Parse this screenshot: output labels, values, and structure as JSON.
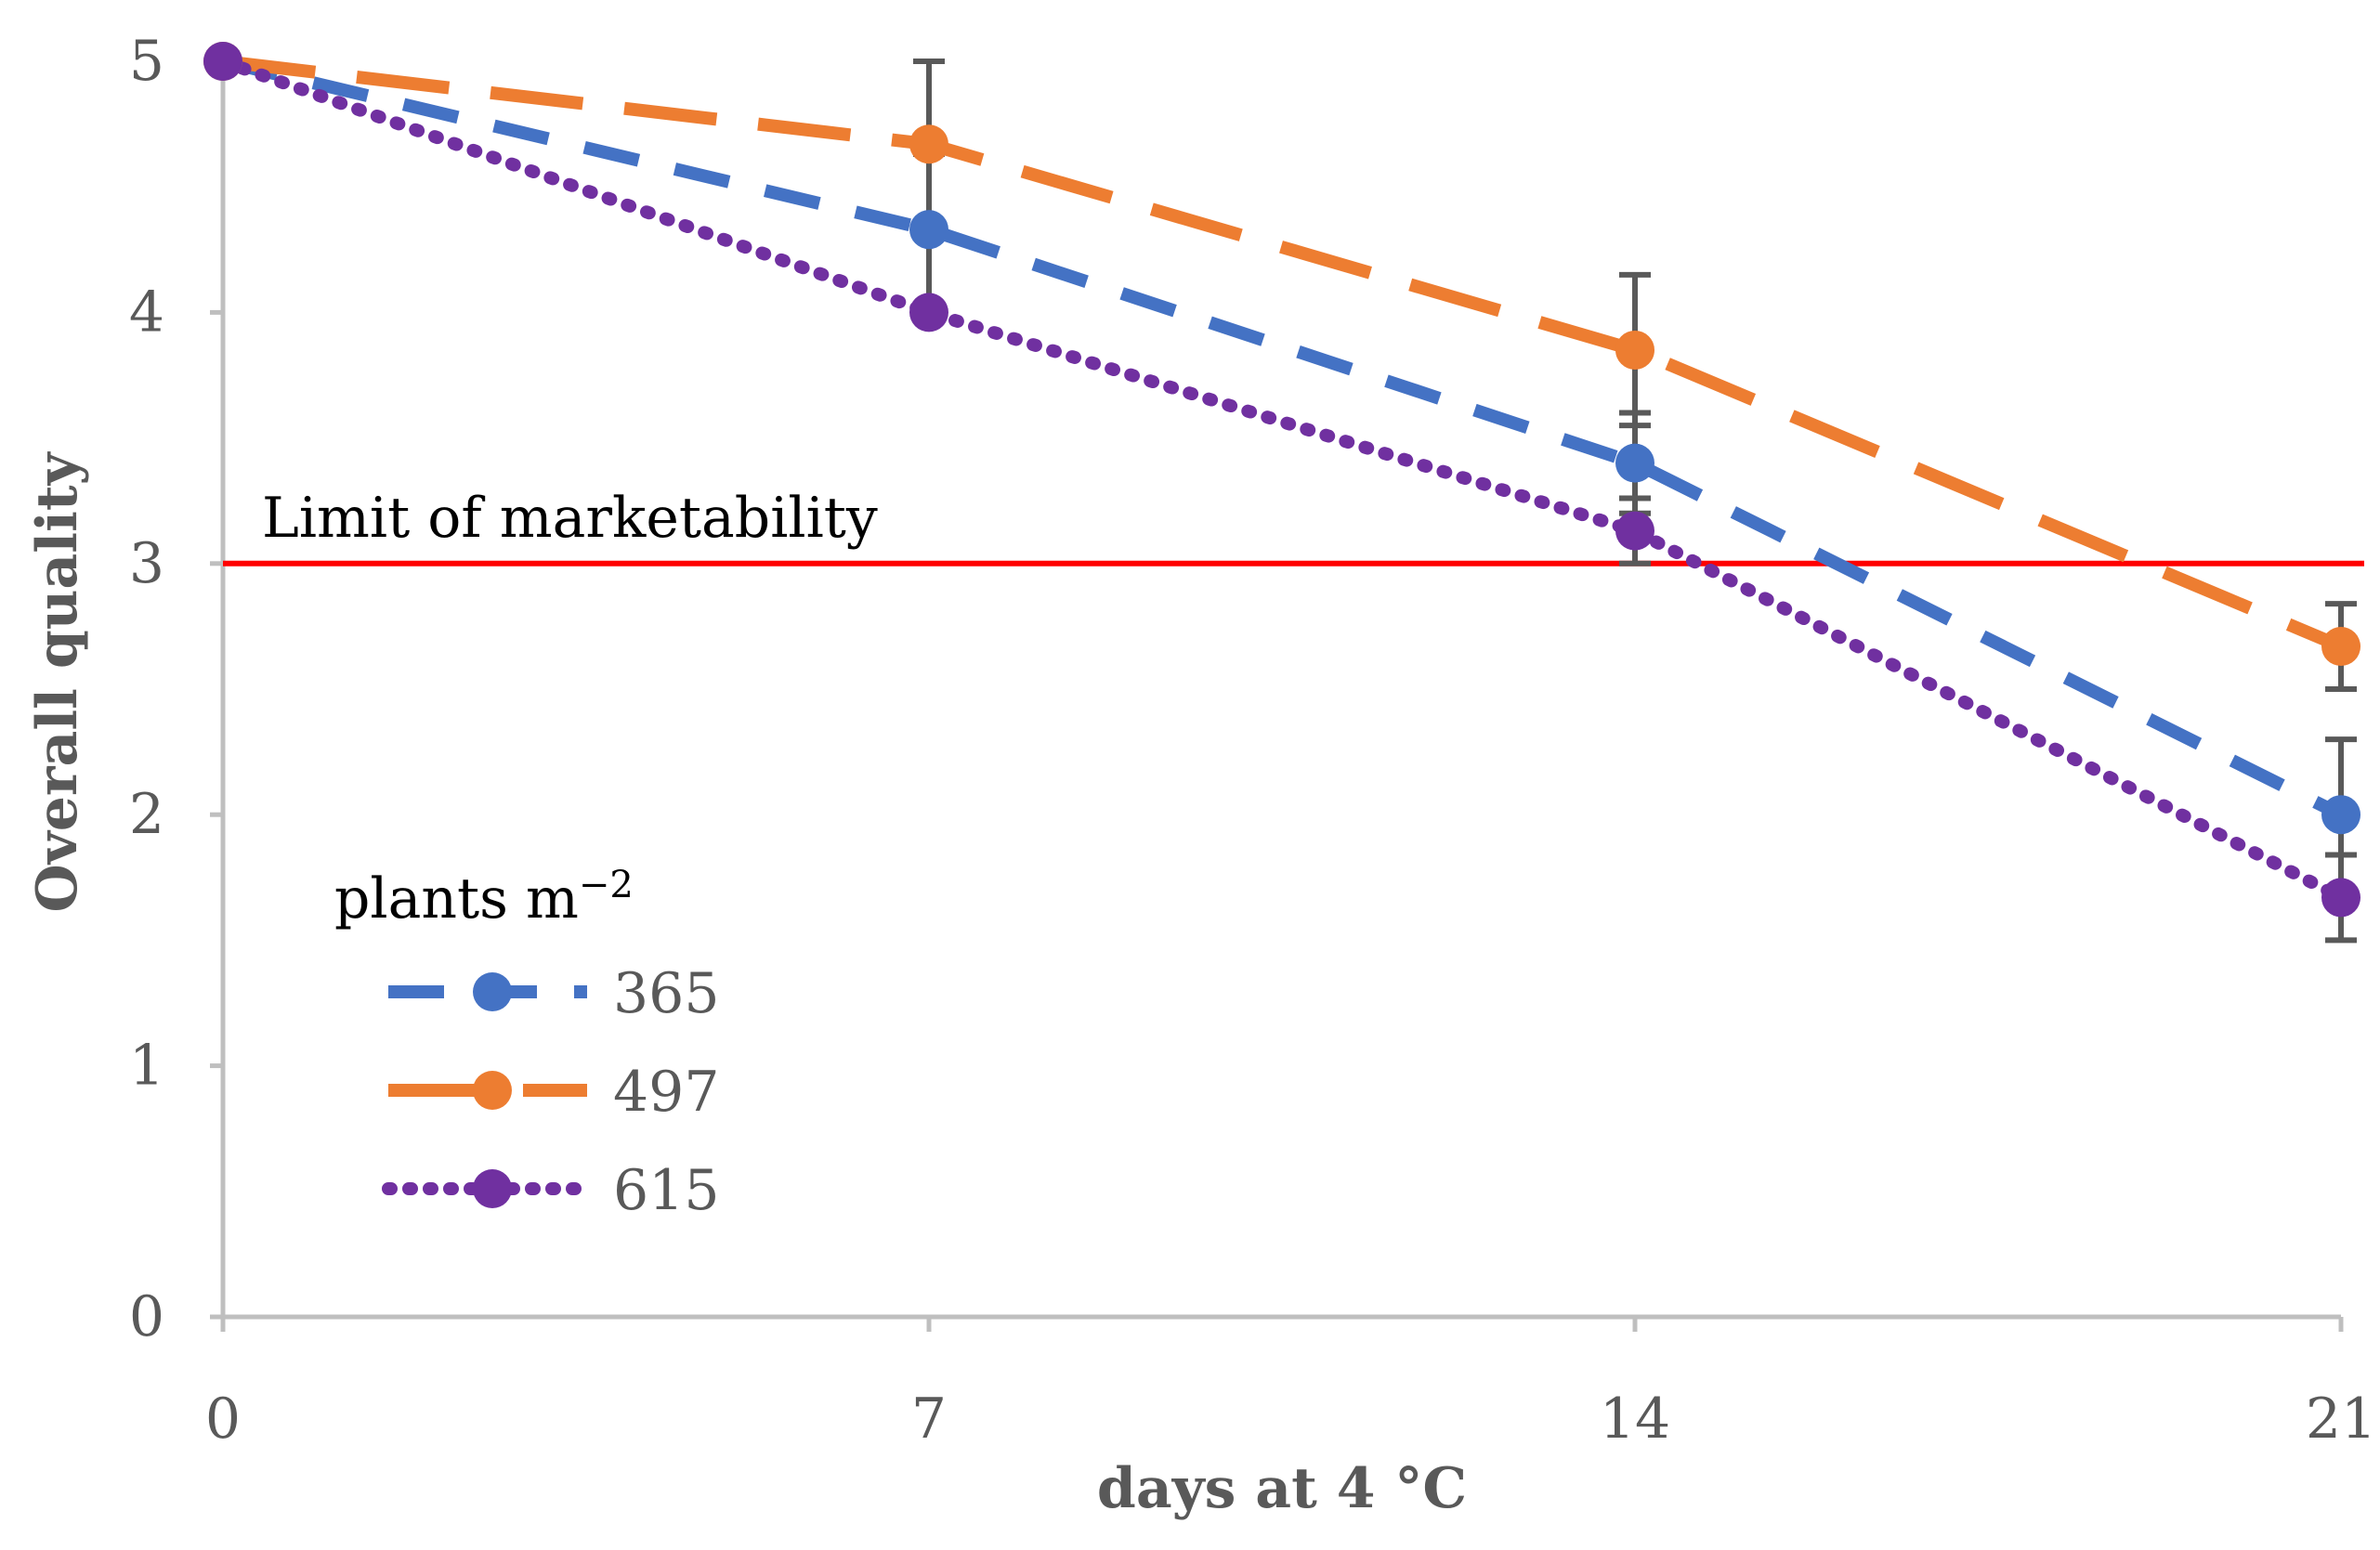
{
  "chart_data": {
    "type": "line",
    "title": "",
    "xlabel": "days  at 4 °C",
    "ylabel": "Overall quality",
    "x": [
      0,
      7,
      14,
      21
    ],
    "x_tick_labels": [
      "0",
      "7",
      "14",
      "21"
    ],
    "y_tick_labels": [
      "0",
      "1",
      "2",
      "3",
      "4",
      "5"
    ],
    "xlim": [
      0,
      21
    ],
    "ylim": [
      0,
      5
    ],
    "grid": false,
    "legend": {
      "title": "plants m",
      "title_superscript": "−2",
      "position": "lower-left"
    },
    "series": [
      {
        "name": "365",
        "values": [
          5.0,
          4.33,
          3.4,
          2.0
        ],
        "errors": [
          0,
          0.3,
          0.2,
          0.3
        ],
        "color": "#4472C4",
        "style": "dashed"
      },
      {
        "name": "497",
        "values": [
          5.0,
          4.67,
          3.85,
          2.67
        ],
        "errors": [
          0,
          0.33,
          0.3,
          0.17
        ],
        "color": "#ED7D31",
        "style": "long-dashed"
      },
      {
        "name": "615",
        "values": [
          5.0,
          4.0,
          3.13,
          1.67
        ],
        "errors": [
          0,
          0,
          0.13,
          0.17
        ],
        "color": "#7030A0",
        "style": "dotted"
      }
    ],
    "reference_line": {
      "y": 3,
      "label": "Limit of marketability",
      "color": "#FF0000"
    },
    "colors": {
      "axis": "#BFBFBF",
      "error_bar": "#595959"
    }
  }
}
